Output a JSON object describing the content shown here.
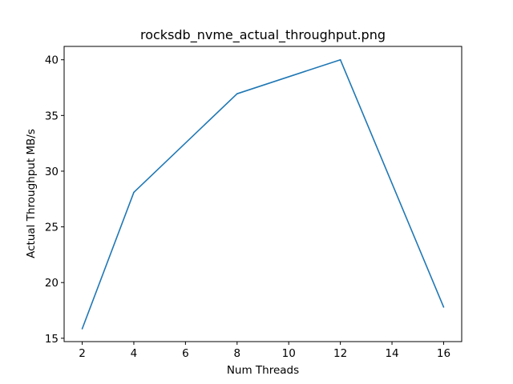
{
  "chart_data": {
    "type": "line",
    "title": "rocksdb_nvme_actual_throughput.png",
    "xlabel": "Num Threads",
    "ylabel": "Actual Throughput MB/s",
    "xlim": [
      1.3,
      16.7
    ],
    "ylim": [
      14.7,
      41.2
    ],
    "xticks": [
      2,
      4,
      6,
      8,
      10,
      12,
      14,
      16
    ],
    "yticks": [
      15,
      20,
      25,
      30,
      35,
      40
    ],
    "grid": false,
    "series": [
      {
        "x": [
          2,
          4,
          8,
          12,
          16
        ],
        "y": [
          15.85,
          28.1,
          36.95,
          40.0,
          17.8
        ],
        "color": "#1f77b4"
      }
    ]
  }
}
